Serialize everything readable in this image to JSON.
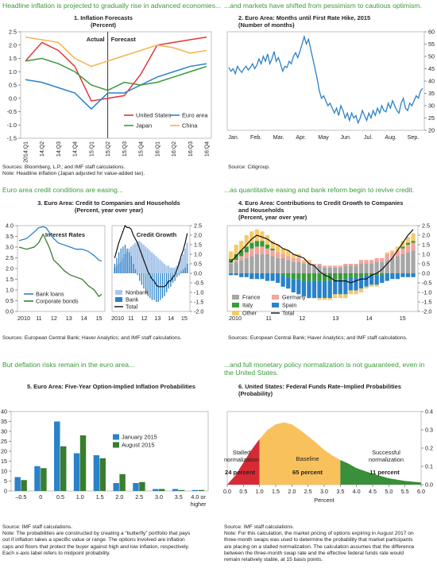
{
  "headers": {
    "h1": "Headline inflation is projected to gradually rise in advanced economies...",
    "h2": "...and markets have shifted from pessimism to cautious optimism.",
    "h3": "Euro area credit conditions are easing...",
    "h4": "...as quantitative easing and bank reform begin to revive credit.",
    "h5": "But deflation risks remain in the euro area...",
    "h6": "...and full monetary policy normalization is not guaranteed, even in the United States."
  },
  "titles": {
    "c1": [
      "1. Inflation Forecasts",
      "(Percent)"
    ],
    "c2": [
      "2. Euro Area: Months until First Rate Hike, 2015",
      "(Number of months)"
    ],
    "c3": [
      "3. Euro Area: Credit to Companies and Households",
      "(Percent, year over year)"
    ],
    "c4": [
      "4. Euro Area: Contributions to Credit Growth to Companies",
      "and Households",
      "(Percent, year over year)"
    ],
    "c5": [
      "5. Euro Area: Five-Year Option-Implied Inflation Probabilities"
    ],
    "c6": [
      "6. United States: Federal Funds Rate–Implied Probabilities",
      "(Probability)"
    ]
  },
  "notes": {
    "n1": [
      "Sources: Bloomberg, L.P.; and IMF staff calculations.",
      "Note: Headline inflation (Japan adjusted for value-added tax)."
    ],
    "n2": [
      "Source: Citigroup."
    ],
    "n3": [
      "Sources: European Central Bank; Haver Analytics; and IMF staff calculations."
    ],
    "n4": [
      "Sources: European Central Bank; Haver Analytics; and IMF staff calculations."
    ],
    "n5": [
      "Source: IMF staff calculations.",
      "Note: The probabilities are constructed by creating a “butterfly” portfolio that pays",
      "out if inflation takes a specific value or range. The options involved are inflation",
      "caps and floors that protect the buyer against high and low inflation, respectively.",
      "Each x-axis label refers to midpoint probability."
    ],
    "n6": [
      "Source: IMF staff calculations.",
      "Note: For this calculation, the market pricing of options expiring in August 2017 on",
      "three-month swaps was used to determine the probability that market participants",
      "are placing on a stalled normalization. The calculation assumes that the difference",
      "between the three-month swap rate and the effective federal funds rate would",
      "remain relatively stable, at 15 basis points."
    ]
  },
  "labels": {
    "actual": "Actual",
    "forecast": "Forecast",
    "interest_rates": "Interest Rates",
    "credit_growth": "Credit Growth",
    "stalled": [
      "Stalled",
      "normalization"
    ],
    "stalled_pct": "24 percent",
    "baseline": "Baseline",
    "baseline_pct": "65 percent",
    "successful": [
      "Successful",
      "normalization"
    ],
    "successful_pct": "11 percent",
    "percent_axis": "Percent"
  },
  "colors": {
    "header_green": "#3a9a3a",
    "united_states": "#e0363a",
    "euro_area": "#2a82c8",
    "japan": "#3b9a3b",
    "china": "#f4b44a",
    "nonbank_blue": "#a9c6ea",
    "bank_blue": "#2a82c8",
    "france": "#a6a6a6",
    "germany": "#f4a59c",
    "italy": "#3b9a3b",
    "spain": "#2a82c8",
    "other": "#f6c96a",
    "stalled_red": "#d62b35",
    "baseline_yellow": "#f8c15b",
    "successful_green": "#3a8f3a",
    "dark_green": "#3a7d2e"
  },
  "chart_data": [
    {
      "id": "inflation_forecasts",
      "type": "line",
      "title": "1. Inflation Forecasts",
      "ylabel": "Percent",
      "ylim": [
        -1.5,
        2.5
      ],
      "yticks": [
        -1.5,
        -1.0,
        -0.5,
        0.0,
        0.5,
        1.0,
        1.5,
        2.0,
        2.5
      ],
      "x": [
        "2014:Q1",
        "14:Q2",
        "14:Q3",
        "14:Q4",
        "15:Q1",
        "15:Q2",
        "15:Q3",
        "15:Q4",
        "16:Q1",
        "16:Q2",
        "16:Q3",
        "16:Q4"
      ],
      "divider": "15:Q2",
      "series": [
        {
          "name": "United States",
          "color": "#e0363a",
          "values": [
            1.4,
            2.1,
            1.8,
            1.2,
            -0.1,
            0.0,
            0.1,
            0.9,
            2.0,
            2.1,
            2.2,
            2.3
          ]
        },
        {
          "name": "Euro area",
          "color": "#2a82c8",
          "values": [
            0.7,
            0.6,
            0.4,
            0.2,
            -0.4,
            0.2,
            0.2,
            0.5,
            0.8,
            1.0,
            1.2,
            1.3
          ]
        },
        {
          "name": "Japan",
          "color": "#3b9a3b",
          "values": [
            1.4,
            1.5,
            1.3,
            1.0,
            0.5,
            0.3,
            0.6,
            0.5,
            0.6,
            0.8,
            1.0,
            1.2
          ]
        },
        {
          "name": "China",
          "color": "#f4b44a",
          "values": [
            2.3,
            2.2,
            2.1,
            1.5,
            1.2,
            1.4,
            1.6,
            1.8,
            2.0,
            1.9,
            1.7,
            1.8
          ]
        }
      ]
    },
    {
      "id": "months_until_rate_hike",
      "type": "line",
      "title": "2. Euro Area: Months until First Rate Hike, 2015",
      "ylabel": "Number of months",
      "ylim": [
        20,
        60
      ],
      "yticks": [
        20,
        25,
        30,
        35,
        40,
        45,
        50,
        55,
        60
      ],
      "xlabels": [
        "Jan.",
        "Feb.",
        "Mar.",
        "Apr.",
        "May",
        "Jun.",
        "Jul.",
        "Aug.",
        "Sep."
      ],
      "color": "#2a82c8",
      "values": [
        45.5,
        44,
        45,
        43,
        46,
        44.5,
        43.5,
        45,
        46,
        44.5,
        45.5,
        47,
        45,
        46.5,
        49,
        47,
        50,
        48,
        51,
        47,
        49,
        52,
        48,
        49.5,
        47,
        44,
        46,
        45.5,
        48,
        47,
        50,
        51.5,
        49.5,
        52,
        55,
        58,
        55,
        57,
        53,
        49,
        45,
        41,
        36,
        33,
        34,
        32,
        30,
        31,
        29,
        27,
        29,
        26,
        30,
        28,
        25,
        27,
        24,
        27,
        25,
        26,
        23,
        25,
        28,
        26,
        24,
        27,
        25,
        28,
        26,
        29,
        27,
        30,
        28,
        27.5,
        31,
        29,
        32,
        30,
        28,
        27,
        31,
        33,
        29,
        28,
        31,
        30,
        32,
        34,
        33,
        36,
        37
      ]
    },
    {
      "id": "interest_rates",
      "type": "line",
      "title": "Interest Rates",
      "ylim": [
        0,
        4
      ],
      "yticks": [
        0.0,
        0.5,
        1.0,
        1.5,
        2.0,
        2.5,
        3.0,
        3.5,
        4.0
      ],
      "xlabels": [
        "2010",
        "11",
        "12",
        "13",
        "14",
        "15"
      ],
      "x": [
        2010.0,
        2010.5,
        2011.0,
        2011.3,
        2011.6,
        2011.8,
        2012.0,
        2012.3,
        2012.6,
        2013.0,
        2013.4,
        2013.8,
        2014.2,
        2014.6,
        2015.0,
        2015.3,
        2015.5
      ],
      "series": [
        {
          "name": "Bank loans",
          "color": "#2a82c8",
          "values": [
            3.3,
            3.4,
            3.7,
            3.9,
            3.95,
            3.9,
            3.7,
            3.4,
            3.2,
            3.1,
            3.0,
            2.9,
            2.9,
            2.8,
            2.6,
            2.4,
            2.35
          ]
        },
        {
          "name": "Corporate bonds",
          "color": "#3a7d2e",
          "values": [
            3.0,
            2.9,
            3.0,
            3.2,
            3.6,
            3.3,
            3.0,
            2.4,
            2.2,
            1.9,
            1.7,
            1.6,
            1.5,
            1.2,
            1.0,
            0.7,
            0.8
          ]
        }
      ]
    },
    {
      "id": "credit_growth",
      "type": "bar",
      "title": "Credit Growth",
      "ylim": [
        -2,
        2.5
      ],
      "yticks": [
        -2.0,
        -1.5,
        -1.0,
        -0.5,
        0.0,
        0.5,
        1.0,
        1.5,
        2.0,
        2.5
      ],
      "xlabels": [
        "2010",
        "11",
        "12",
        "13",
        "14",
        "15"
      ],
      "x_range": [
        2010,
        2015.5
      ],
      "series": [
        {
          "name": "Nonbank",
          "color": "#a9c6ea",
          "values": [
            0.3,
            0.4,
            0.5,
            0.6,
            0.8,
            1.0,
            1.1,
            1.3,
            1.4,
            1.5,
            1.6,
            1.7,
            1.7,
            1.6,
            1.5,
            1.4,
            1.3,
            1.2,
            1.1,
            1.0,
            0.9,
            0.8,
            0.7,
            0.6,
            0.5,
            0.4,
            0.4,
            0.3,
            0.3,
            0.3,
            0.4,
            0.6,
            0.8,
            1.0,
            1.3,
            1.6
          ]
        },
        {
          "name": "Bank",
          "color": "#2a82c8",
          "values": [
            0.5,
            0.8,
            1.1,
            1.3,
            1.4,
            1.5,
            1.3,
            1.1,
            0.9,
            0.5,
            0.2,
            -0.1,
            -0.4,
            -0.6,
            -0.8,
            -1.0,
            -1.2,
            -1.3,
            -1.4,
            -1.4,
            -1.5,
            -1.5,
            -1.4,
            -1.3,
            -1.2,
            -1.0,
            -0.8,
            -0.7,
            -0.5,
            -0.4,
            -0.2,
            -0.1,
            0.1,
            0.2,
            0.3,
            0.5
          ]
        },
        {
          "name": "Total",
          "color": "#111111",
          "values": [
            0.8,
            1.2,
            1.6,
            1.9,
            2.2,
            2.5,
            2.4,
            2.4,
            2.3,
            2.0,
            1.8,
            1.6,
            1.3,
            1.0,
            0.7,
            0.4,
            0.1,
            -0.1,
            -0.3,
            -0.4,
            -0.6,
            -0.7,
            -0.7,
            -0.7,
            -0.7,
            -0.6,
            -0.4,
            -0.4,
            -0.2,
            -0.1,
            0.2,
            0.5,
            0.9,
            1.2,
            1.6,
            2.1
          ]
        }
      ]
    },
    {
      "id": "contributions_to_credit_growth",
      "type": "bar",
      "title": "4. Euro Area: Contributions to Credit Growth to Companies and Households",
      "ylim": [
        -2,
        2.5
      ],
      "yticks": [
        -2.0,
        -1.5,
        -1.0,
        -0.5,
        0.0,
        0.5,
        1.0,
        1.5,
        2.0,
        2.5
      ],
      "xlabels": [
        "2010",
        "11",
        "12",
        "13",
        "14",
        "15"
      ],
      "x_range": [
        2010,
        2015.5
      ],
      "series": [
        {
          "name": "France",
          "color": "#a6a6a6",
          "values": [
            0.5,
            0.6,
            0.7,
            0.8,
            0.9,
            1.0,
            1.0,
            1.0,
            0.9,
            0.8,
            0.8,
            0.7,
            0.6,
            0.6,
            0.5,
            0.5,
            0.4,
            0.4,
            0.3,
            0.3,
            0.3,
            0.3,
            0.4,
            0.4,
            0.4,
            0.5,
            0.5,
            0.5,
            0.6,
            0.6,
            0.7,
            0.8,
            0.9,
            1.0,
            1.1,
            1.2
          ]
        },
        {
          "name": "Germany",
          "color": "#f4a59c",
          "values": [
            0.05,
            0.1,
            0.2,
            0.3,
            0.4,
            0.4,
            0.4,
            0.3,
            0.3,
            0.3,
            0.2,
            0.2,
            0.2,
            0.2,
            0.1,
            0.1,
            0.1,
            0.1,
            0.1,
            0.1,
            0.1,
            0.1,
            0.1,
            0.1,
            0.1,
            0.2,
            0.2,
            0.2,
            0.2,
            0.2,
            0.3,
            0.3,
            0.3,
            0.3,
            0.4,
            0.4
          ]
        },
        {
          "name": "Italy",
          "color": "#3b9a3b",
          "values": [
            0.2,
            0.3,
            0.3,
            0.3,
            0.3,
            0.3,
            0.3,
            0.2,
            0.1,
            0.0,
            -0.1,
            -0.2,
            -0.3,
            -0.3,
            -0.4,
            -0.4,
            -0.4,
            -0.4,
            -0.4,
            -0.4,
            -0.3,
            -0.3,
            -0.3,
            -0.2,
            -0.2,
            -0.2,
            -0.1,
            -0.1,
            -0.1,
            -0.1,
            0.0,
            0.0,
            0.0,
            0.1,
            0.1,
            0.1
          ]
        },
        {
          "name": "Spain",
          "color": "#2a82c8",
          "values": [
            -0.1,
            -0.1,
            -0.2,
            -0.2,
            -0.3,
            -0.3,
            -0.3,
            -0.4,
            -0.4,
            -0.5,
            -0.6,
            -0.6,
            -0.7,
            -0.8,
            -0.8,
            -0.9,
            -0.9,
            -0.9,
            -0.9,
            -0.9,
            -0.8,
            -0.8,
            -0.8,
            -0.7,
            -0.7,
            -0.6,
            -0.6,
            -0.5,
            -0.5,
            -0.4,
            -0.4,
            -0.3,
            -0.3,
            -0.2,
            -0.2,
            -0.2
          ]
        },
        {
          "name": "Other",
          "color": "#f6c96a",
          "values": [
            0.4,
            0.5,
            0.5,
            0.6,
            0.6,
            0.6,
            0.5,
            0.5,
            0.4,
            0.4,
            0.3,
            0.3,
            0.2,
            0.2,
            0.1,
            0.1,
            0.0,
            -0.1,
            -0.1,
            -0.1,
            -0.2,
            -0.2,
            -0.2,
            -0.2,
            -0.2,
            -0.2,
            -0.1,
            -0.1,
            -0.1,
            0.0,
            0.1,
            0.1,
            0.2,
            0.3,
            0.3,
            0.4
          ]
        },
        {
          "name": "Total",
          "color": "#111111",
          "values": [
            0.6,
            0.9,
            1.2,
            1.5,
            1.8,
            2.0,
            1.9,
            1.8,
            1.6,
            1.5,
            1.3,
            1.2,
            1.0,
            0.9,
            0.8,
            0.5,
            0.4,
            0.1,
            -0.1,
            -0.2,
            -0.4,
            -0.4,
            -0.4,
            -0.5,
            -0.4,
            -0.3,
            -0.3,
            -0.1,
            0.0,
            0.2,
            0.5,
            0.8,
            1.2,
            1.6,
            2.0,
            2.3
          ]
        }
      ]
    },
    {
      "id": "option_implied_inflation",
      "type": "bar",
      "title": "5. Euro Area: Five-Year Option-Implied Inflation Probabilities",
      "ylim": [
        0,
        40
      ],
      "yticks": [
        0,
        5,
        10,
        15,
        20,
        25,
        30,
        35,
        40
      ],
      "categories": [
        "–0.5",
        "0",
        "0.5",
        "1.0",
        "1.5",
        "2.0",
        "2.5",
        "3.0",
        "3.5",
        "4.0 or higher"
      ],
      "series": [
        {
          "name": "January 2015",
          "color": "#2a82c8",
          "values": [
            7,
            12.5,
            35,
            19,
            18,
            4,
            4,
            1,
            1,
            0.5
          ]
        },
        {
          "name": "August 2015",
          "color": "#3a7d2e",
          "values": [
            5.5,
            11.5,
            22.5,
            28,
            16.5,
            8.5,
            4.5,
            1,
            0.5,
            0.5
          ]
        }
      ]
    },
    {
      "id": "fed_funds_probabilities",
      "type": "area",
      "title": "6. United States: Federal Funds Rate–Implied Probabilities",
      "ylabel": "Probability",
      "xlabel": "Percent",
      "xlim": [
        0,
        6
      ],
      "ylim": [
        0,
        0.4
      ],
      "xticks": [
        0.0,
        0.5,
        1.0,
        1.5,
        2.0,
        2.5,
        3.0,
        3.5,
        4.0,
        4.5,
        5.0,
        5.5,
        6.0
      ],
      "yticks": [
        0.0,
        0.1,
        0.2,
        0.3,
        0.4
      ],
      "x": [
        0,
        0.25,
        0.5,
        0.75,
        1.0,
        1.25,
        1.5,
        1.75,
        2.0,
        2.25,
        2.5,
        2.75,
        3.0,
        3.25,
        3.5,
        3.75,
        4.0,
        4.5,
        5.0,
        5.5,
        6.0
      ],
      "y": [
        0.0,
        0.05,
        0.12,
        0.19,
        0.25,
        0.3,
        0.33,
        0.34,
        0.33,
        0.3,
        0.265,
        0.23,
        0.19,
        0.16,
        0.135,
        0.115,
        0.09,
        0.06,
        0.035,
        0.02,
        0.012
      ],
      "regions": [
        {
          "name": "Stalled normalization",
          "from": 0,
          "to": 1.0,
          "color": "#d62b35",
          "share": "24 percent"
        },
        {
          "name": "Baseline",
          "from": 1.0,
          "to": 3.5,
          "color": "#f8c15b",
          "share": "65 percent"
        },
        {
          "name": "Successful normalization",
          "from": 3.5,
          "to": 6.0,
          "color": "#3a8f3a",
          "share": "11 percent"
        }
      ]
    }
  ]
}
